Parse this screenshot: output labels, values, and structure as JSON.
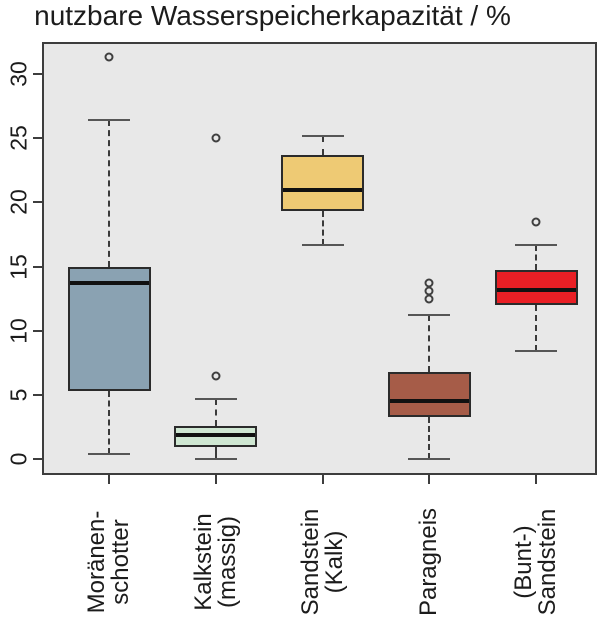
{
  "chart_data": {
    "type": "boxplot",
    "title": "nutzbare Wasserspeicherkapazität / %",
    "xlabel": "",
    "ylabel": "",
    "ylim": [
      -1.25,
      32.5
    ],
    "yticks": [
      0,
      5,
      10,
      15,
      20,
      25,
      30
    ],
    "grid": false,
    "legend_position": "none",
    "panel_background": "#e8e8e8",
    "series": [
      {
        "label": "Moränen-\nschotter",
        "color": "#8aa2b2",
        "whisker_low": 0.4,
        "q1": 5.3,
        "median": 13.7,
        "q3": 15.0,
        "whisker_high": 26.4,
        "outliers": [
          31.3
        ]
      },
      {
        "label": "Kalkstein\n(massig)",
        "color": "#cfe7d2",
        "whisker_low": 0.0,
        "q1": 0.9,
        "median": 1.9,
        "q3": 2.6,
        "whisker_high": 4.7,
        "outliers": [
          6.5,
          25.0
        ]
      },
      {
        "label": "Sandstein\n(Kalk)",
        "color": "#eeca74",
        "whisker_low": 16.7,
        "q1": 19.3,
        "median": 21.0,
        "q3": 23.7,
        "whisker_high": 25.2,
        "outliers": []
      },
      {
        "label": "Paragneis",
        "color": "#a65c48",
        "whisker_low": 0.0,
        "q1": 3.3,
        "median": 4.5,
        "q3": 6.8,
        "whisker_high": 11.2,
        "outliers": [
          12.5,
          13.1,
          13.7
        ]
      },
      {
        "label": "(Bunt-)\nSandstein",
        "color": "#e91f25",
        "whisker_low": 8.4,
        "q1": 12.0,
        "median": 13.2,
        "q3": 14.7,
        "whisker_high": 16.7,
        "outliers": [
          18.5
        ]
      }
    ]
  }
}
